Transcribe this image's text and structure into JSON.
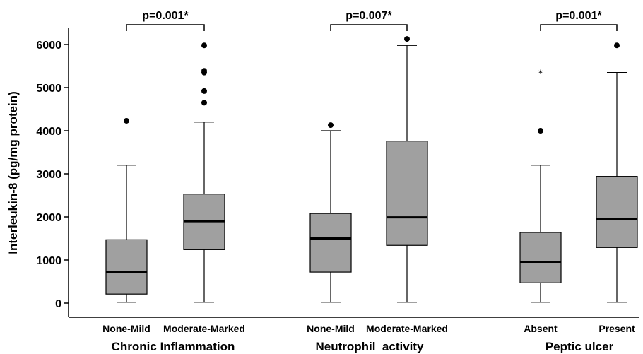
{
  "chart_data": {
    "type": "boxplot",
    "ylabel": "Interleukin-8 (pg/mg protein)",
    "ylim": [
      0,
      6400
    ],
    "yticks": [
      0,
      1000,
      2000,
      3000,
      4000,
      5000,
      6000
    ],
    "grid": false,
    "colors": {
      "box_fill": "#a0a0a0",
      "stroke": "#000000"
    },
    "groups": [
      {
        "label": "Chronic Inflammation",
        "pvalue": "p=0.001*",
        "categories": [
          {
            "label": "None-Mild",
            "whisker_low": 20,
            "q1": 210,
            "median": 730,
            "q3": 1470,
            "whisker_high": 3200,
            "outliers": [
              {
                "value": 4230,
                "marker": "dot"
              }
            ]
          },
          {
            "label": "Moderate-Marked",
            "whisker_low": 20,
            "q1": 1240,
            "median": 1900,
            "q3": 2530,
            "whisker_high": 4200,
            "outliers": [
              {
                "value": 4650,
                "marker": "dot"
              },
              {
                "value": 4920,
                "marker": "dot"
              },
              {
                "value": 5350,
                "marker": "dot"
              },
              {
                "value": 5390,
                "marker": "dot"
              },
              {
                "value": 5980,
                "marker": "dot"
              }
            ]
          }
        ]
      },
      {
        "label": "Neutrophil  activity",
        "pvalue": "p=0.007*",
        "categories": [
          {
            "label": "None-Mild",
            "whisker_low": 20,
            "q1": 720,
            "median": 1500,
            "q3": 2080,
            "whisker_high": 4000,
            "outliers": [
              {
                "value": 4130,
                "marker": "dot"
              }
            ]
          },
          {
            "label": "Moderate-Marked",
            "whisker_low": 20,
            "q1": 1340,
            "median": 1990,
            "q3": 3760,
            "whisker_high": 5980,
            "outliers": [
              {
                "value": 6130,
                "marker": "dot"
              }
            ]
          }
        ]
      },
      {
        "label": "Peptic ulcer",
        "pvalue": "p=0.001*",
        "categories": [
          {
            "label": "Absent",
            "whisker_low": 20,
            "q1": 470,
            "median": 960,
            "q3": 1640,
            "whisker_high": 3200,
            "outliers": [
              {
                "value": 4000,
                "marker": "dot"
              },
              {
                "value": 5380,
                "marker": "star"
              }
            ]
          },
          {
            "label": "Present",
            "whisker_low": 20,
            "q1": 1290,
            "median": 1960,
            "q3": 2940,
            "whisker_high": 5350,
            "outliers": [
              {
                "value": 5980,
                "marker": "dot"
              }
            ]
          }
        ]
      }
    ]
  }
}
